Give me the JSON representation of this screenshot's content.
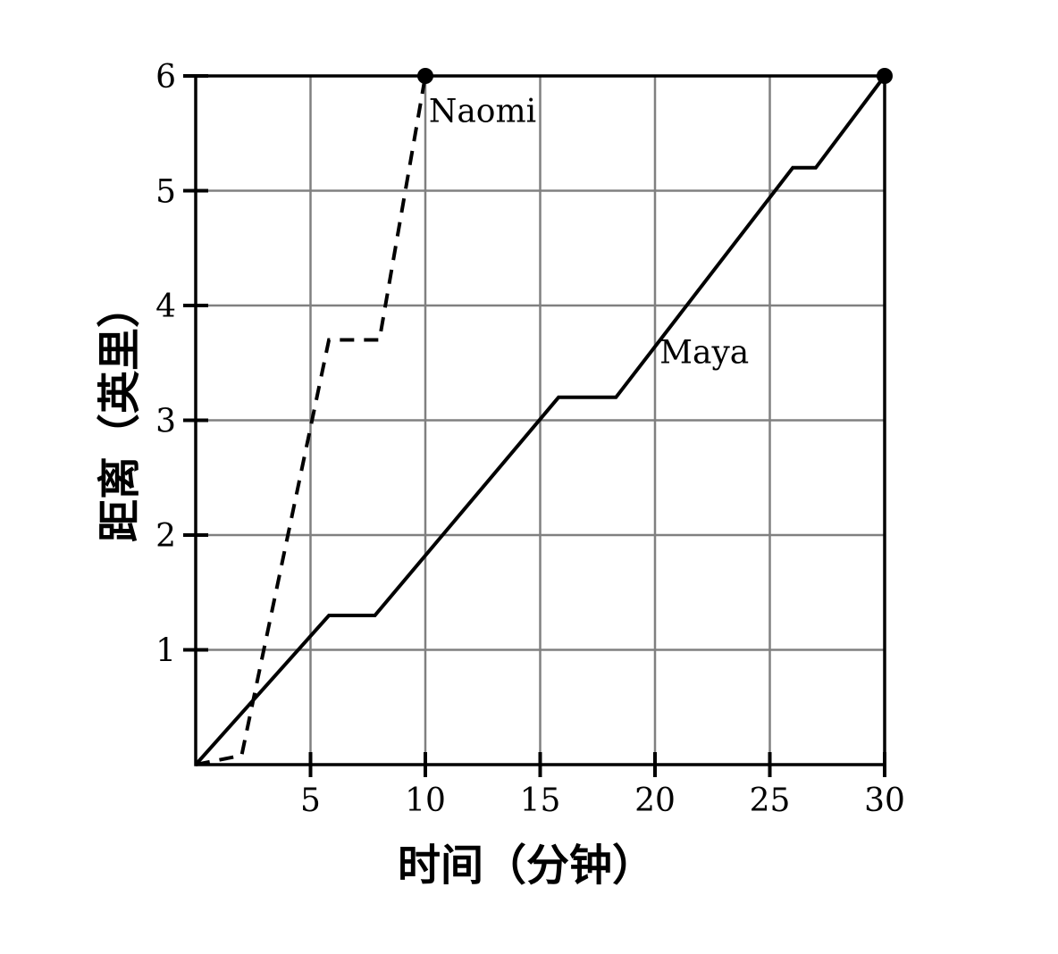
{
  "chart_data": {
    "type": "line",
    "title": "",
    "xlabel": "时间（分钟）",
    "ylabel": "距离（英里）",
    "xlim": [
      0,
      30
    ],
    "ylim": [
      0,
      6
    ],
    "xticks": [
      5,
      10,
      15,
      20,
      25,
      30
    ],
    "yticks": [
      1,
      2,
      3,
      4,
      5,
      6
    ],
    "grid": true,
    "legend": "none",
    "series": [
      {
        "name": "Naomi",
        "style": "dashed",
        "color": "#000000",
        "points": [
          [
            0,
            0
          ],
          [
            2,
            0.08
          ],
          [
            5.8,
            3.7
          ],
          [
            8,
            3.7
          ],
          [
            10,
            6
          ]
        ],
        "endpoint_marker": true
      },
      {
        "name": "Maya",
        "style": "solid",
        "color": "#000000",
        "points": [
          [
            0,
            0
          ],
          [
            5.8,
            1.3
          ],
          [
            7.8,
            1.3
          ],
          [
            15.8,
            3.2
          ],
          [
            18.3,
            3.2
          ],
          [
            26,
            5.2
          ],
          [
            27,
            5.2
          ],
          [
            30,
            6
          ]
        ],
        "endpoint_marker": true
      }
    ]
  }
}
